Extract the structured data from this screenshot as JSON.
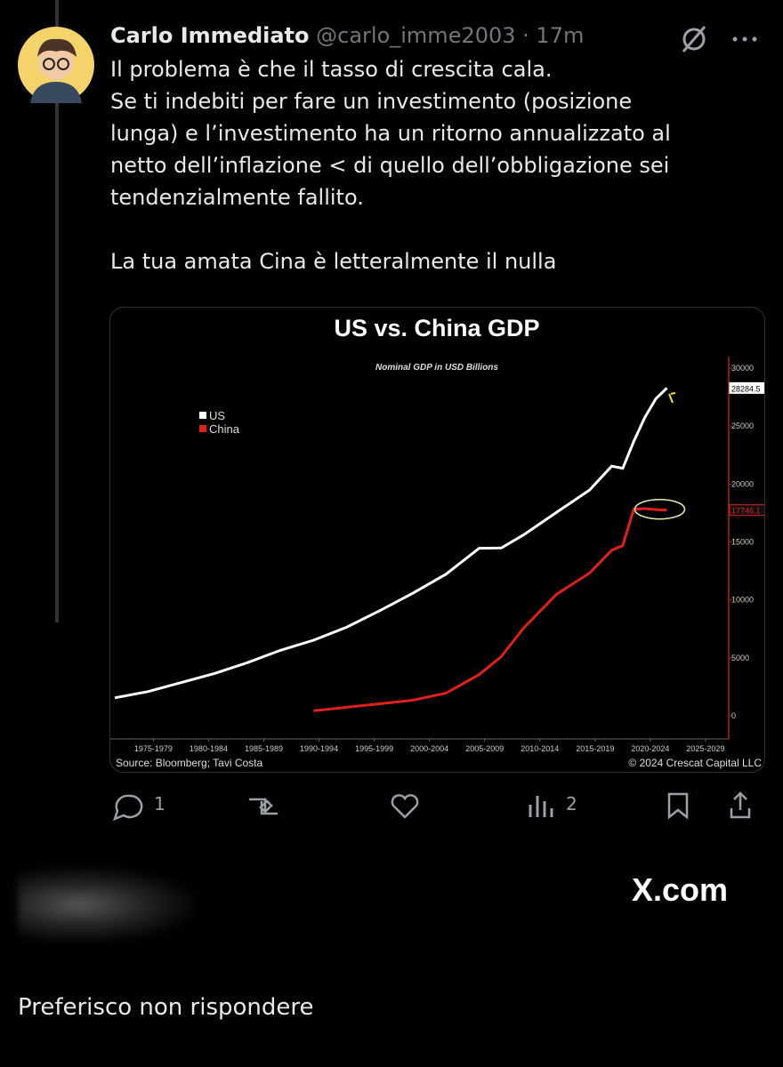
{
  "tweet": {
    "author": "Carlo Immediato",
    "handle": "@carlo_imme2003",
    "time": "· 17m",
    "text": [
      "Il problema è che il tasso di crescita cala.",
      "Se ti indebiti per fare un investimento (posizione",
      "lunga) e l’investimento ha un ritorno annualizzato al",
      "netto dell’inflazione < di quello dell’obbligazione sei",
      "tendenzialmente fallito.",
      "La tua amata Cina è letteralmente il nulla"
    ],
    "replies": "1",
    "views": "2"
  },
  "chart_data": {
    "type": "line",
    "title": "US vs. China GDP",
    "subtitle": "Nominal GDP in USD Billions",
    "source": "Source: Bloomberg; Tavi Costa",
    "copyright": "© 2024 Crescat Capital LLC",
    "x": [
      1974,
      1977,
      1980,
      1983,
      1986,
      1989,
      1992,
      1995,
      1998,
      2001,
      2004,
      2007,
      2009,
      2011,
      2014,
      2017,
      2019,
      2020,
      2021,
      2022,
      2023,
      2024
    ],
    "series": [
      {
        "name": "US",
        "color": "#ffffff",
        "end_label": "28284.5",
        "values": [
          1545,
          2086,
          2857,
          3634,
          4579,
          5641,
          6520,
          7640,
          9063,
          10582,
          12217,
          14452,
          14478,
          15600,
          17550,
          19480,
          21540,
          21354,
          23681,
          25744,
          27361,
          28284.5
        ]
      },
      {
        "name": "China",
        "color": "#e0201b",
        "end_label": "17746.1",
        "values": [
          null,
          null,
          null,
          null,
          null,
          null,
          427,
          734,
          1029,
          1339,
          1955,
          3550,
          5100,
          7550,
          10480,
          12310,
          14280,
          14690,
          17820,
          17880,
          17790,
          17746.1
        ]
      }
    ],
    "xlim": [
      1973.6,
      2029.6
    ],
    "xticks": [
      {
        "value": 1977.5,
        "label": "1975-1979"
      },
      {
        "value": 1982.5,
        "label": "1980-1984"
      },
      {
        "value": 1987.5,
        "label": "1985-1989"
      },
      {
        "value": 1992.5,
        "label": "1990-1994"
      },
      {
        "value": 1997.5,
        "label": "1995-1999"
      },
      {
        "value": 2002.5,
        "label": "2000-2004"
      },
      {
        "value": 2007.5,
        "label": "2005-2009"
      },
      {
        "value": 2012.5,
        "label": "2010-2014"
      },
      {
        "value": 2017.5,
        "label": "2015-2019"
      },
      {
        "value": 2022.5,
        "label": "2020-2024"
      },
      {
        "value": 2027.5,
        "label": "2025-2029"
      }
    ],
    "ylim": [
      -2000,
      31000
    ],
    "yticks": [
      0,
      5000,
      10000,
      15000,
      20000,
      25000,
      30000
    ],
    "legend": "top-left"
  },
  "footer": {
    "watermark": "X.com",
    "reply": "Preferisco non rispondere"
  }
}
